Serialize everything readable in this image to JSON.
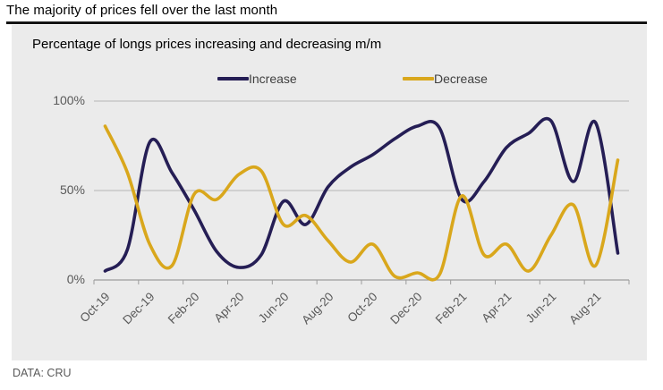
{
  "header": {
    "title": "The majority of prices fell over the last month"
  },
  "panel": {
    "title": "Percentage of longs prices increasing and decreasing m/m",
    "background": "#ebebeb"
  },
  "footer": {
    "source": "DATA: CRU"
  },
  "chart_data": {
    "type": "line",
    "smoothed": true,
    "title": "Percentage of longs prices increasing and decreasing m/m",
    "x": [
      "Oct-19",
      "Nov-19",
      "Dec-19",
      "Jan-20",
      "Feb-20",
      "Mar-20",
      "Apr-20",
      "May-20",
      "Jun-20",
      "Jul-20",
      "Aug-20",
      "Sep-20",
      "Oct-20",
      "Nov-20",
      "Dec-20",
      "Jan-21",
      "Feb-21",
      "Mar-21",
      "Apr-21",
      "May-21",
      "Jun-21",
      "Jul-21",
      "Aug-21",
      "Sep-21"
    ],
    "x_tick_labels": [
      "Oct-19",
      "Dec-19",
      "Feb-20",
      "Apr-20",
      "Jun-20",
      "Aug-20",
      "Oct-20",
      "Dec-20",
      "Feb-21",
      "Apr-21",
      "Jun-21",
      "Aug-21"
    ],
    "y_tick_labels": [
      "100%",
      "50%",
      "0%"
    ],
    "y_ticks": [
      100,
      50,
      0
    ],
    "ylim": [
      0,
      100
    ],
    "y_unit": "%",
    "gridlines": true,
    "legend_position": "top-center",
    "series": [
      {
        "name": "Increase",
        "color": "#251e55",
        "values": [
          5,
          17,
          77,
          60,
          39,
          16,
          7,
          14,
          44,
          31,
          52,
          63,
          70,
          79,
          86,
          85,
          45,
          55,
          74,
          82,
          89,
          55,
          88,
          15
        ]
      },
      {
        "name": "Decrease",
        "color": "#d9a71c",
        "values": [
          86,
          60,
          20,
          8,
          48,
          45,
          59,
          61,
          31,
          36,
          22,
          10,
          20,
          2,
          4,
          3,
          47,
          14,
          20,
          5,
          25,
          42,
          8,
          67
        ]
      }
    ],
    "axis_color": "#9c9c9c",
    "gridline_color": "#b5b5b5"
  }
}
